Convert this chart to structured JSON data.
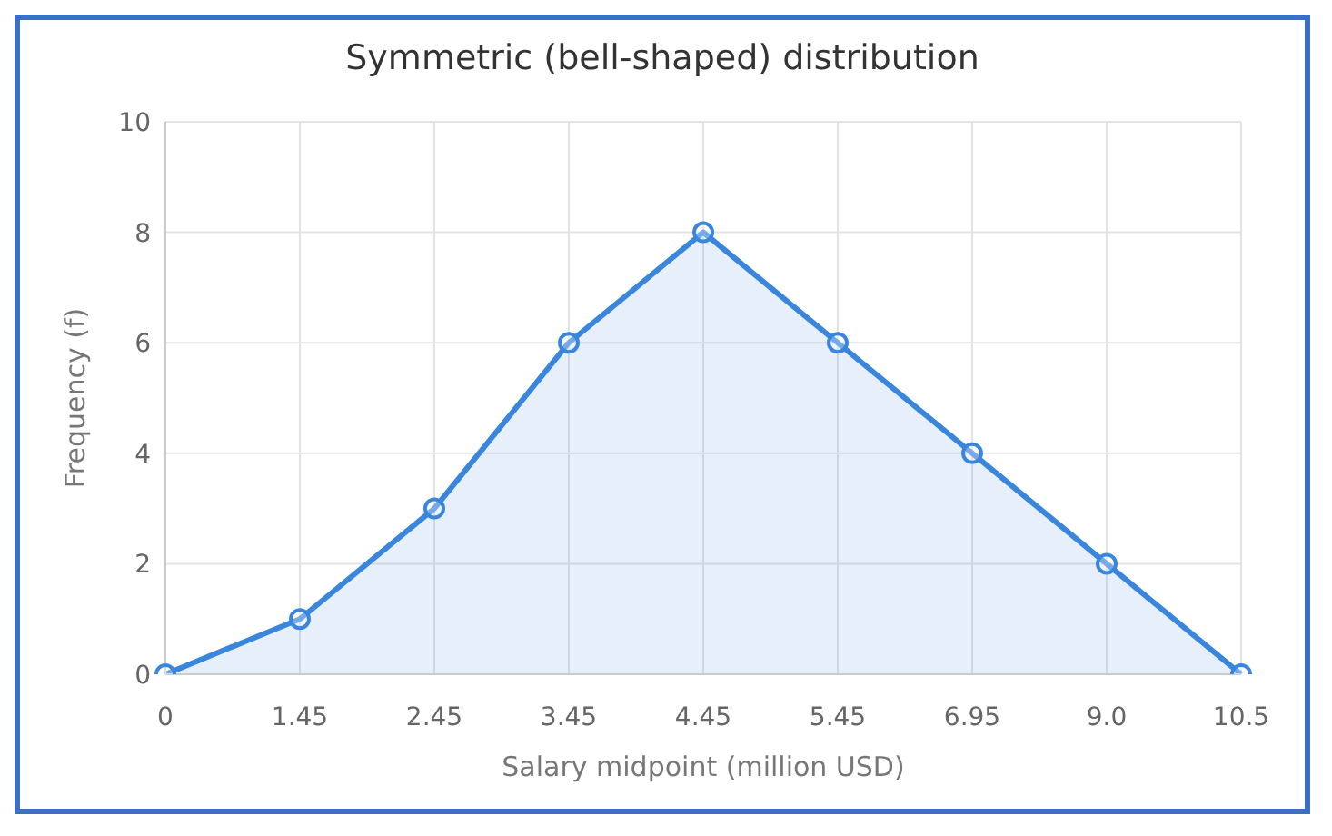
{
  "chart_data": {
    "type": "area",
    "title": "Symmetric (bell-shaped) distribution",
    "xlabel": "Salary midpoint (million USD)",
    "ylabel": "Frequency (f)",
    "categories": [
      "0",
      "1.45",
      "2.45",
      "3.45",
      "4.45",
      "5.45",
      "6.95",
      "9.0",
      "10.5"
    ],
    "values": [
      0,
      1,
      3,
      6,
      8,
      6,
      4,
      2,
      0
    ],
    "color": "#3a86dc",
    "ylim": [
      0,
      10
    ],
    "yticks": [
      0,
      2,
      4,
      6,
      8,
      10
    ],
    "grid": true,
    "marker": "circle",
    "line_style": "solid"
  }
}
